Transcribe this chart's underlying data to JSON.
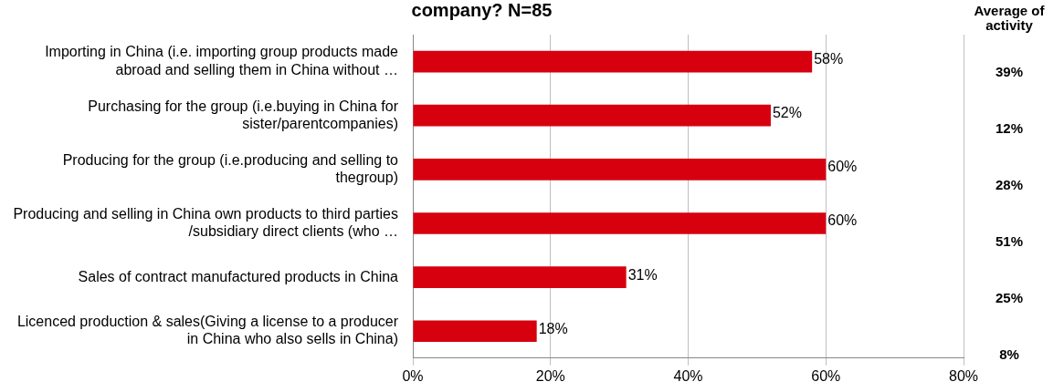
{
  "chart_data": {
    "type": "bar",
    "orientation": "horizontal",
    "title": "company? N=85",
    "categories": [
      "Importing in China (i.e. importing group products made abroad and selling them in China without …",
      "Purchasing for the group (i.e.buying in China for sister/parentcompanies)",
      "Producing for the group (i.e.producing and selling to thegroup)",
      "Producing and selling in China own products to third parties /subsidiary direct clients (who …",
      "Sales of contract manufactured products in China",
      "Licenced production & sales(Giving a license to a producer in China who also sells in China)"
    ],
    "values": [
      58,
      52,
      60,
      60,
      31,
      18
    ],
    "value_labels": [
      "58%",
      "52%",
      "60%",
      "60%",
      "31%",
      "18%"
    ],
    "color": "#d7000f",
    "xlim": [
      0,
      80
    ],
    "xticks": [
      {
        "value": 0,
        "label": "0%"
      },
      {
        "value": 20,
        "label": "20%"
      },
      {
        "value": 40,
        "label": "40%"
      },
      {
        "value": 60,
        "label": "60%"
      },
      {
        "value": 80,
        "label": "80%"
      }
    ],
    "grid": "x",
    "legend": false,
    "annotations": [
      "Average of activity",
      "39%",
      "12%",
      "28%",
      "51%",
      "25%",
      "8%"
    ]
  }
}
